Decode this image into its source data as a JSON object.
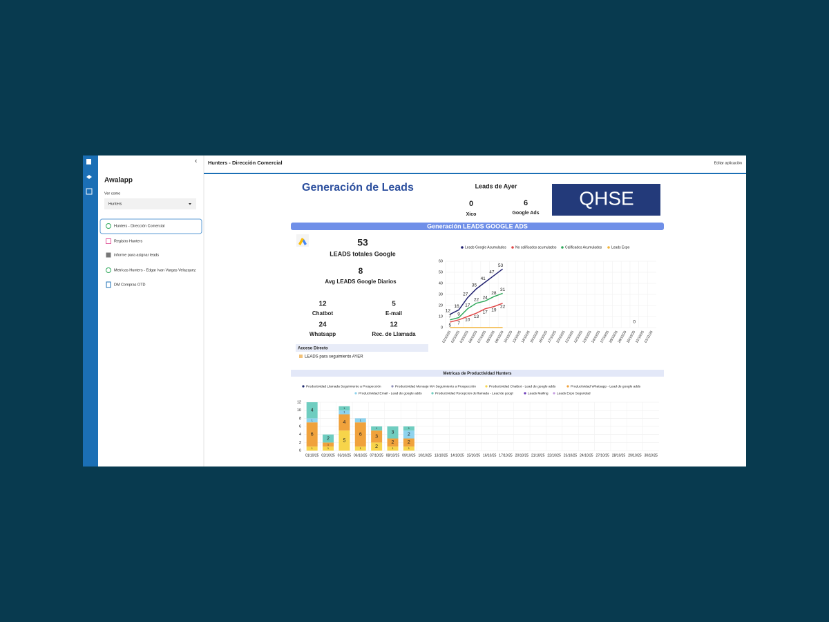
{
  "sidebar": {
    "app_name": "Awalapp",
    "view_as_label": "Ver como",
    "view_as_value": "Hunters",
    "items": [
      "Hunters - Dirección Comercial",
      "Registro Hunters",
      "informe para asignar leads",
      "Metricas Hunters - Edgar Ivan Vargas Velazquez",
      "DM Compras OTD"
    ]
  },
  "header": {
    "title": "Hunters - Dirección Comercial",
    "action": "Editar aplicación"
  },
  "dashboard": {
    "title": "Generación de Leads",
    "yesterday_title": "Leads de Ayer",
    "yesterday": [
      {
        "value": "0",
        "label": "Xico"
      },
      {
        "value": "6",
        "label": "Google Ads"
      }
    ],
    "badge": "QHSE",
    "section_title": "Generación LEADS GOOGLE ADS",
    "kpis": [
      {
        "value": "53",
        "label": "LEADS totales Google"
      },
      {
        "value": "8",
        "label": "Avg LEADS Google Diarios"
      },
      {
        "value": "12",
        "label": "Chatbot"
      },
      {
        "value": "5",
        "label": "E-mail"
      },
      {
        "value": "24",
        "label": "Whatsapp"
      },
      {
        "value": "12",
        "label": "Rec. de Llamada"
      }
    ],
    "shortcuts_title": "Acceso Directo",
    "shortcut": "LEADS para seguimiento AYER",
    "productivity_title": "Metricas de Productividad Hunters"
  },
  "chart_data": [
    {
      "type": "line",
      "categories": [
        "01/10/25",
        "02/10/25",
        "03/10/25",
        "06/10/25",
        "07/10/25",
        "08/10/25",
        "09/10/25",
        "10/10/25",
        "13/10/25",
        "14/10/25",
        "15/10/25",
        "16/10/25",
        "17/10/25",
        "20/10/25",
        "21/10/25",
        "22/10/25",
        "23/10/25",
        "24/10/25",
        "27/10/25",
        "28/10/25",
        "29/10/25",
        "30/10/25",
        "31/10/25",
        "01/11/25"
      ],
      "series": [
        {
          "name": "Leads Google Acumulados",
          "color": "#1f1f6e",
          "values": [
            12,
            16,
            27,
            35,
            41,
            47,
            53,
            null,
            null,
            null,
            null,
            null,
            null,
            null,
            null,
            null,
            null,
            null,
            null,
            null,
            null,
            null,
            null,
            null
          ]
        },
        {
          "name": "No calificados acumulados",
          "color": "#e04848",
          "values": [
            5,
            7,
            10,
            13,
            17,
            19,
            22,
            null,
            null,
            null,
            null,
            null,
            null,
            null,
            null,
            null,
            null,
            null,
            null,
            null,
            null,
            null,
            null,
            null
          ]
        },
        {
          "name": "Calificados Acumulados",
          "color": "#2ea85a",
          "values": [
            7,
            9,
            17,
            22,
            24,
            28,
            31,
            null,
            null,
            null,
            null,
            null,
            null,
            null,
            null,
            null,
            null,
            null,
            null,
            null,
            null,
            null,
            null,
            null
          ]
        },
        {
          "name": "Leads Expo",
          "color": "#f2b43a",
          "values": [
            0,
            0,
            0,
            0,
            0,
            0,
            0,
            null,
            null,
            null,
            null,
            null,
            null,
            null,
            null,
            null,
            null,
            null,
            null,
            null,
            null,
            null,
            null,
            null
          ]
        }
      ],
      "annotations": [
        {
          "text": "0"
        }
      ],
      "ylim": [
        0,
        60
      ],
      "yticks": [
        0,
        10,
        20,
        30,
        40,
        50,
        60
      ],
      "grid": true,
      "data_labels": true
    },
    {
      "type": "stacked_bar",
      "categories": [
        "01/10/25",
        "02/10/25",
        "03/10/25",
        "06/10/25",
        "07/10/25",
        "08/10/25",
        "09/10/25",
        "10/10/25",
        "13/10/25",
        "14/10/25",
        "15/10/25",
        "16/10/25",
        "17/10/25",
        "20/10/25",
        "21/10/25",
        "22/10/25",
        "23/10/25",
        "24/10/25",
        "27/10/25",
        "28/10/25",
        "29/10/25",
        "30/10/25"
      ],
      "series": [
        {
          "name": "Productividad Llamada Seguimiento a Prospección",
          "color": "#1f2a6e",
          "values": [
            null,
            null,
            null,
            null,
            null,
            null,
            null,
            null,
            null,
            null,
            null,
            null,
            null,
            null,
            null,
            null,
            null,
            null,
            null,
            null,
            null,
            null
          ]
        },
        {
          "name": "Productividad Mensaje WA Seguimiento a Prospección",
          "color": "#8f8fb8",
          "values": [
            null,
            null,
            null,
            null,
            null,
            null,
            null,
            null,
            null,
            null,
            null,
            null,
            null,
            null,
            null,
            null,
            null,
            null,
            null,
            null,
            null,
            null
          ]
        },
        {
          "name": "Productividad Chatbot - Lead de google adds",
          "color": "#f7d44a",
          "values": [
            1,
            1,
            5,
            1,
            2,
            1,
            1,
            null,
            null,
            null,
            null,
            null,
            null,
            null,
            null,
            null,
            null,
            null,
            null,
            null,
            null,
            null
          ]
        },
        {
          "name": "Productividad Whatsapp - Lead de google adds",
          "color": "#f0a23c",
          "values": [
            6,
            1,
            4,
            6,
            3,
            2,
            2,
            null,
            null,
            null,
            null,
            null,
            null,
            null,
            null,
            null,
            null,
            null,
            null,
            null,
            null,
            null
          ]
        },
        {
          "name": "Productividad Email - Lead de google adds",
          "color": "#8fd3ee",
          "values": [
            1,
            null,
            1,
            1,
            null,
            null,
            2,
            null,
            null,
            null,
            null,
            null,
            null,
            null,
            null,
            null,
            null,
            null,
            null,
            null,
            null,
            null
          ]
        },
        {
          "name": "Productividad Recepcion de llamada - Lead de googl",
          "color": "#6fcdc0",
          "values": [
            4,
            2,
            1,
            null,
            1,
            3,
            1,
            null,
            null,
            null,
            null,
            null,
            null,
            null,
            null,
            null,
            null,
            null,
            null,
            null,
            null,
            null
          ]
        },
        {
          "name": "Leads Mailing",
          "color": "#6a3ab8",
          "values": [
            null,
            null,
            null,
            null,
            null,
            null,
            null,
            null,
            null,
            null,
            null,
            null,
            null,
            null,
            null,
            null,
            null,
            null,
            null,
            null,
            null,
            null
          ]
        },
        {
          "name": "Leads Expo Seguridad",
          "color": "#c59ee0",
          "values": [
            null,
            null,
            null,
            null,
            null,
            null,
            null,
            null,
            null,
            null,
            null,
            null,
            null,
            null,
            null,
            null,
            null,
            null,
            null,
            null,
            null,
            null
          ]
        }
      ],
      "ylim": [
        0,
        12
      ],
      "yticks": [
        0,
        2,
        4,
        6,
        8,
        10,
        12
      ],
      "grid": true,
      "data_labels": true
    }
  ]
}
